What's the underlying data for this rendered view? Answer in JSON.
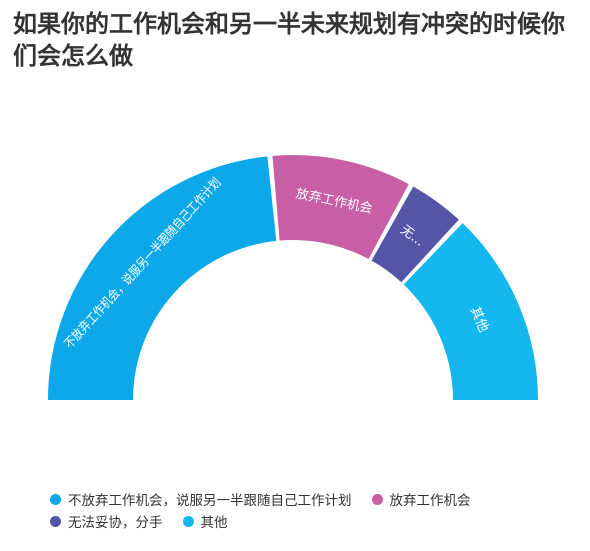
{
  "chart_data": {
    "type": "pie",
    "variant": "half-donut",
    "title": "如果你的工作机会和另一半未来规划有冲突的时候你们会怎么做",
    "slices": [
      {
        "label": "不放弃工作机会，说服另一半跟随自己工作计划",
        "short_label": "不放弃工作机会，说服另一半跟随自己工作计划",
        "value": 47,
        "color": "#0ca8ea"
      },
      {
        "label": "放弃工作机会",
        "short_label": "放弃工作机会",
        "value": 19,
        "color": "#c75ea6"
      },
      {
        "label": "无法妥协，分手",
        "short_label": "无...",
        "value": 8,
        "color": "#5555a8"
      },
      {
        "label": "其他",
        "short_label": "其他",
        "value": 26,
        "color": "#14b7ee"
      }
    ],
    "legend_placement": "bottom-left"
  }
}
